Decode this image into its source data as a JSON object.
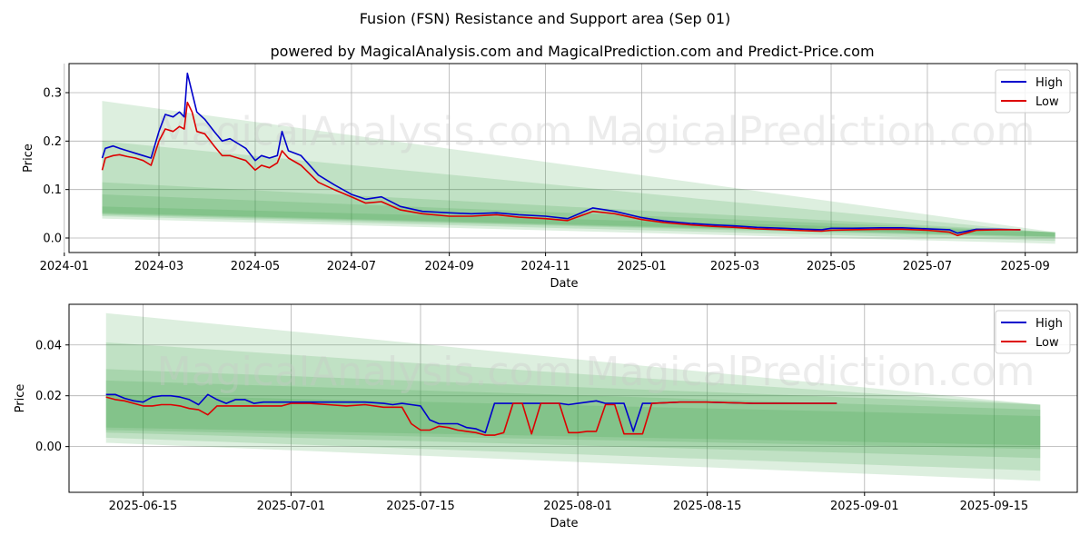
{
  "title": "Fusion (FSN) Resistance and Support area (Sep 01)",
  "subtitle": "powered by MagicalAnalysis.com and MagicalPrediction.com and Predict-Price.com",
  "watermark": "MagicalAnalysis.com   MagicalPrediction.com",
  "colors": {
    "high": "#0000cc",
    "low": "#dd0000",
    "band": "#2e9b35"
  },
  "chart_data": [
    {
      "type": "line",
      "xlabel": "Date",
      "ylabel": "Price",
      "xlim": [
        "2024-01-04",
        "2025-10-04"
      ],
      "ylim": [
        -0.03,
        0.36
      ],
      "x_ticks": [
        "2024-01",
        "2024-03",
        "2024-05",
        "2024-07",
        "2024-09",
        "2024-11",
        "2025-01",
        "2025-03",
        "2025-05",
        "2025-07",
        "2025-09"
      ],
      "x_tick_dates": [
        "2024-01-01",
        "2024-03-01",
        "2024-05-01",
        "2024-07-01",
        "2024-09-01",
        "2024-11-01",
        "2025-01-01",
        "2025-03-01",
        "2025-05-01",
        "2025-07-01",
        "2025-09-01"
      ],
      "y_ticks": [
        "0.0",
        "0.1",
        "0.2",
        "0.3"
      ],
      "y_tick_values": [
        0,
        0.1,
        0.2,
        0.3
      ],
      "grid": true,
      "legend": "top-right",
      "series": [
        {
          "name": "High",
          "x": [
            "2024-01-25",
            "2024-01-27",
            "2024-02-01",
            "2024-02-05",
            "2024-02-10",
            "2024-02-15",
            "2024-02-20",
            "2024-02-25",
            "2024-03-01",
            "2024-03-05",
            "2024-03-10",
            "2024-03-14",
            "2024-03-17",
            "2024-03-19",
            "2024-03-22",
            "2024-03-25",
            "2024-03-30",
            "2024-04-05",
            "2024-04-10",
            "2024-04-15",
            "2024-04-20",
            "2024-04-25",
            "2024-05-01",
            "2024-05-05",
            "2024-05-10",
            "2024-05-15",
            "2024-05-18",
            "2024-05-22",
            "2024-05-30",
            "2024-06-10",
            "2024-06-20",
            "2024-07-01",
            "2024-07-10",
            "2024-07-20",
            "2024-08-01",
            "2024-08-15",
            "2024-09-01",
            "2024-09-15",
            "2024-10-01",
            "2024-10-15",
            "2024-11-01",
            "2024-11-15",
            "2024-12-01",
            "2024-12-15",
            "2025-01-01",
            "2025-01-15",
            "2025-02-01",
            "2025-02-15",
            "2025-03-01",
            "2025-03-15",
            "2025-04-01",
            "2025-04-15",
            "2025-04-25",
            "2025-05-01",
            "2025-05-15",
            "2025-06-01",
            "2025-06-15",
            "2025-07-01",
            "2025-07-15",
            "2025-07-20",
            "2025-08-01",
            "2025-08-15",
            "2025-08-29"
          ],
          "values": [
            0.165,
            0.185,
            0.19,
            0.185,
            0.18,
            0.175,
            0.17,
            0.165,
            0.22,
            0.255,
            0.25,
            0.26,
            0.25,
            0.34,
            0.3,
            0.26,
            0.245,
            0.22,
            0.2,
            0.205,
            0.195,
            0.185,
            0.16,
            0.17,
            0.165,
            0.17,
            0.22,
            0.18,
            0.17,
            0.13,
            0.11,
            0.09,
            0.08,
            0.085,
            0.065,
            0.055,
            0.052,
            0.05,
            0.052,
            0.048,
            0.045,
            0.04,
            0.062,
            0.055,
            0.042,
            0.035,
            0.03,
            0.027,
            0.025,
            0.022,
            0.02,
            0.018,
            0.017,
            0.02,
            0.02,
            0.021,
            0.021,
            0.019,
            0.017,
            0.01,
            0.018,
            0.018,
            0.017
          ]
        },
        {
          "name": "Low",
          "x": [
            "2024-01-25",
            "2024-01-27",
            "2024-02-01",
            "2024-02-05",
            "2024-02-10",
            "2024-02-15",
            "2024-02-20",
            "2024-02-25",
            "2024-03-01",
            "2024-03-05",
            "2024-03-10",
            "2024-03-14",
            "2024-03-17",
            "2024-03-19",
            "2024-03-22",
            "2024-03-25",
            "2024-03-30",
            "2024-04-05",
            "2024-04-10",
            "2024-04-15",
            "2024-04-20",
            "2024-04-25",
            "2024-05-01",
            "2024-05-05",
            "2024-05-10",
            "2024-05-15",
            "2024-05-18",
            "2024-05-22",
            "2024-05-30",
            "2024-06-10",
            "2024-06-20",
            "2024-07-01",
            "2024-07-10",
            "2024-07-20",
            "2024-08-01",
            "2024-08-15",
            "2024-09-01",
            "2024-09-15",
            "2024-10-01",
            "2024-10-15",
            "2024-11-01",
            "2024-11-15",
            "2024-12-01",
            "2024-12-15",
            "2025-01-01",
            "2025-01-15",
            "2025-02-01",
            "2025-02-15",
            "2025-03-01",
            "2025-03-15",
            "2025-04-01",
            "2025-04-15",
            "2025-04-25",
            "2025-05-01",
            "2025-05-15",
            "2025-06-01",
            "2025-06-15",
            "2025-07-01",
            "2025-07-15",
            "2025-07-20",
            "2025-08-01",
            "2025-08-15",
            "2025-08-29"
          ],
          "values": [
            0.14,
            0.165,
            0.17,
            0.172,
            0.168,
            0.165,
            0.16,
            0.15,
            0.2,
            0.225,
            0.22,
            0.23,
            0.225,
            0.28,
            0.26,
            0.22,
            0.215,
            0.19,
            0.17,
            0.17,
            0.165,
            0.16,
            0.14,
            0.15,
            0.145,
            0.155,
            0.18,
            0.165,
            0.15,
            0.115,
            0.1,
            0.085,
            0.072,
            0.075,
            0.058,
            0.05,
            0.045,
            0.045,
            0.048,
            0.043,
            0.04,
            0.036,
            0.055,
            0.05,
            0.038,
            0.032,
            0.027,
            0.024,
            0.022,
            0.019,
            0.017,
            0.015,
            0.014,
            0.016,
            0.017,
            0.018,
            0.018,
            0.016,
            0.012,
            0.005,
            0.016,
            0.017,
            0.017
          ]
        }
      ],
      "bands": [
        {
          "start": "2024-01-25",
          "end": "2025-09-20",
          "upper": [
            0.283,
            0.012
          ],
          "lower": [
            0.04,
            -0.012
          ]
        },
        {
          "start": "2024-01-25",
          "end": "2025-09-20",
          "upper": [
            0.2,
            0.01
          ],
          "lower": [
            0.045,
            -0.006
          ]
        },
        {
          "start": "2024-01-25",
          "end": "2025-09-20",
          "upper": [
            0.115,
            0.012
          ],
          "lower": [
            0.048,
            0.0
          ]
        },
        {
          "start": "2024-01-25",
          "end": "2025-09-20",
          "upper": [
            0.09,
            0.012
          ],
          "lower": [
            0.05,
            0.002
          ]
        },
        {
          "start": "2024-01-25",
          "end": "2025-09-20",
          "upper": [
            0.065,
            0.012
          ],
          "lower": [
            0.052,
            0.003
          ]
        }
      ]
    },
    {
      "type": "line",
      "xlabel": "Date",
      "ylabel": "Price",
      "xlim": [
        "2025-06-07",
        "2025-09-24"
      ],
      "ylim": [
        -0.018,
        0.056
      ],
      "x_ticks": [
        "2025-06-15",
        "2025-07-01",
        "2025-07-15",
        "2025-08-01",
        "2025-08-15",
        "2025-09-01",
        "2025-09-15"
      ],
      "x_tick_dates": [
        "2025-06-15",
        "2025-07-01",
        "2025-07-15",
        "2025-08-01",
        "2025-08-15",
        "2025-09-01",
        "2025-09-15"
      ],
      "y_ticks": [
        "0.00",
        "0.02",
        "0.04"
      ],
      "y_tick_values": [
        0,
        0.02,
        0.04
      ],
      "grid": true,
      "legend": "top-right",
      "series": [
        {
          "name": "High",
          "x": [
            "2025-06-11",
            "2025-06-12",
            "2025-06-13",
            "2025-06-14",
            "2025-06-15",
            "2025-06-16",
            "2025-06-17",
            "2025-06-18",
            "2025-06-19",
            "2025-06-20",
            "2025-06-21",
            "2025-06-22",
            "2025-06-23",
            "2025-06-24",
            "2025-06-25",
            "2025-06-26",
            "2025-06-27",
            "2025-06-28",
            "2025-06-29",
            "2025-06-30",
            "2025-07-01",
            "2025-07-03",
            "2025-07-05",
            "2025-07-07",
            "2025-07-09",
            "2025-07-11",
            "2025-07-12",
            "2025-07-13",
            "2025-07-14",
            "2025-07-15",
            "2025-07-16",
            "2025-07-17",
            "2025-07-18",
            "2025-07-19",
            "2025-07-20",
            "2025-07-21",
            "2025-07-22",
            "2025-07-23",
            "2025-07-24",
            "2025-07-25",
            "2025-07-26",
            "2025-07-27",
            "2025-07-28",
            "2025-07-29",
            "2025-07-30",
            "2025-07-31",
            "2025-08-01",
            "2025-08-02",
            "2025-08-03",
            "2025-08-04",
            "2025-08-05",
            "2025-08-06",
            "2025-08-07",
            "2025-08-08",
            "2025-08-09",
            "2025-08-12",
            "2025-08-15",
            "2025-08-20",
            "2025-08-25",
            "2025-08-29"
          ],
          "values": [
            0.0205,
            0.0205,
            0.019,
            0.018,
            0.0175,
            0.0195,
            0.02,
            0.02,
            0.0195,
            0.0185,
            0.0165,
            0.0205,
            0.0185,
            0.017,
            0.0185,
            0.0185,
            0.017,
            0.0175,
            0.0175,
            0.0175,
            0.0175,
            0.0175,
            0.0175,
            0.0175,
            0.0175,
            0.017,
            0.0165,
            0.017,
            0.0165,
            0.016,
            0.0105,
            0.009,
            0.009,
            0.009,
            0.0075,
            0.007,
            0.0055,
            0.017,
            0.017,
            0.017,
            0.017,
            0.017,
            0.017,
            0.017,
            0.017,
            0.0165,
            0.017,
            0.0175,
            0.018,
            0.017,
            0.017,
            0.017,
            0.006,
            0.017,
            0.017,
            0.0175,
            0.0175,
            0.017,
            0.017,
            0.017
          ]
        },
        {
          "name": "Low",
          "x": [
            "2025-06-11",
            "2025-06-12",
            "2025-06-13",
            "2025-06-14",
            "2025-06-15",
            "2025-06-16",
            "2025-06-17",
            "2025-06-18",
            "2025-06-19",
            "2025-06-20",
            "2025-06-21",
            "2025-06-22",
            "2025-06-23",
            "2025-06-24",
            "2025-06-25",
            "2025-06-26",
            "2025-06-27",
            "2025-06-28",
            "2025-06-29",
            "2025-06-30",
            "2025-07-01",
            "2025-07-03",
            "2025-07-05",
            "2025-07-07",
            "2025-07-09",
            "2025-07-11",
            "2025-07-12",
            "2025-07-13",
            "2025-07-14",
            "2025-07-15",
            "2025-07-16",
            "2025-07-17",
            "2025-07-18",
            "2025-07-19",
            "2025-07-20",
            "2025-07-21",
            "2025-07-22",
            "2025-07-23",
            "2025-07-24",
            "2025-07-25",
            "2025-07-26",
            "2025-07-27",
            "2025-07-28",
            "2025-07-29",
            "2025-07-30",
            "2025-07-31",
            "2025-08-01",
            "2025-08-02",
            "2025-08-03",
            "2025-08-04",
            "2025-08-05",
            "2025-08-06",
            "2025-08-07",
            "2025-08-08",
            "2025-08-09",
            "2025-08-12",
            "2025-08-15",
            "2025-08-20",
            "2025-08-25",
            "2025-08-29"
          ],
          "values": [
            0.0195,
            0.0185,
            0.018,
            0.017,
            0.016,
            0.016,
            0.0165,
            0.0165,
            0.016,
            0.015,
            0.0145,
            0.0125,
            0.016,
            0.016,
            0.016,
            0.016,
            0.016,
            0.016,
            0.016,
            0.016,
            0.017,
            0.017,
            0.0165,
            0.016,
            0.0165,
            0.0155,
            0.0155,
            0.0155,
            0.009,
            0.0065,
            0.0065,
            0.008,
            0.0075,
            0.0065,
            0.006,
            0.0055,
            0.0045,
            0.0045,
            0.0055,
            0.017,
            0.017,
            0.005,
            0.017,
            0.017,
            0.017,
            0.0055,
            0.0055,
            0.006,
            0.006,
            0.0165,
            0.0165,
            0.005,
            0.005,
            0.005,
            0.017,
            0.0175,
            0.0175,
            0.017,
            0.017,
            0.017
          ]
        }
      ],
      "bands": [
        {
          "start": "2025-06-11",
          "end": "2025-09-20",
          "upper": [
            0.0525,
            0.0165
          ],
          "lower": [
            0.0015,
            -0.0135
          ]
        },
        {
          "start": "2025-06-11",
          "end": "2025-09-20",
          "upper": [
            0.041,
            0.0165
          ],
          "lower": [
            0.0035,
            -0.0095
          ]
        },
        {
          "start": "2025-06-11",
          "end": "2025-09-20",
          "upper": [
            0.0305,
            0.0165
          ],
          "lower": [
            0.0055,
            -0.0045
          ]
        },
        {
          "start": "2025-06-11",
          "end": "2025-09-20",
          "upper": [
            0.026,
            0.0145
          ],
          "lower": [
            0.0065,
            -0.001
          ]
        },
        {
          "start": "2025-06-11",
          "end": "2025-09-20",
          "upper": [
            0.0205,
            0.012
          ],
          "lower": [
            0.0075,
            0.0005
          ]
        }
      ]
    }
  ],
  "legend_labels": {
    "high": "High",
    "low": "Low"
  }
}
